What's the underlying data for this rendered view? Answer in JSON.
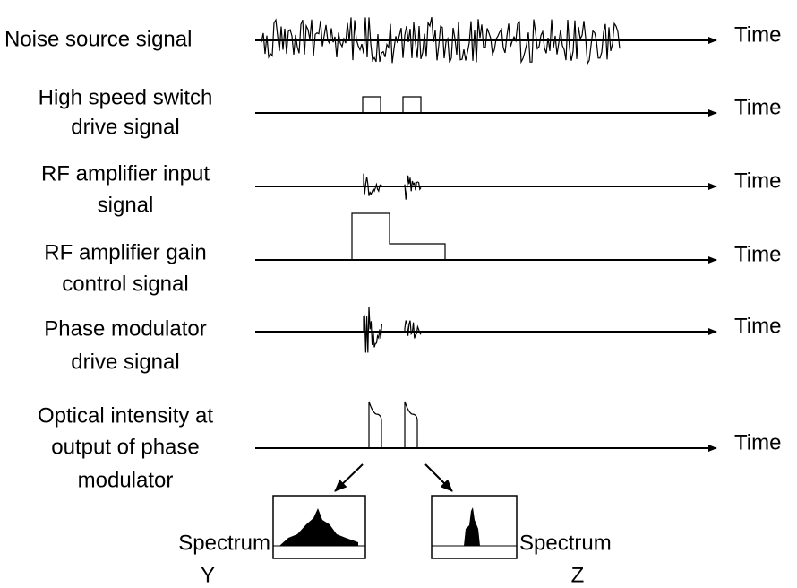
{
  "rows": [
    {
      "label": [
        "Noise source signal"
      ],
      "axis": "Time"
    },
    {
      "label": [
        "High speed switch",
        "drive signal"
      ],
      "axis": "Time"
    },
    {
      "label": [
        "RF amplifier input",
        "signal"
      ],
      "axis": "Time"
    },
    {
      "label": [
        "RF amplifier gain",
        "control signal"
      ],
      "axis": "Time"
    },
    {
      "label": [
        "Phase modulator",
        "drive signal"
      ],
      "axis": "Time"
    },
    {
      "label": [
        "Optical intensity at",
        "output of phase",
        "modulator"
      ],
      "axis": "Time"
    }
  ],
  "spectra": [
    {
      "caption": "Spectrum",
      "letter": "Y"
    },
    {
      "caption": "Spectrum",
      "letter": "Z"
    }
  ]
}
